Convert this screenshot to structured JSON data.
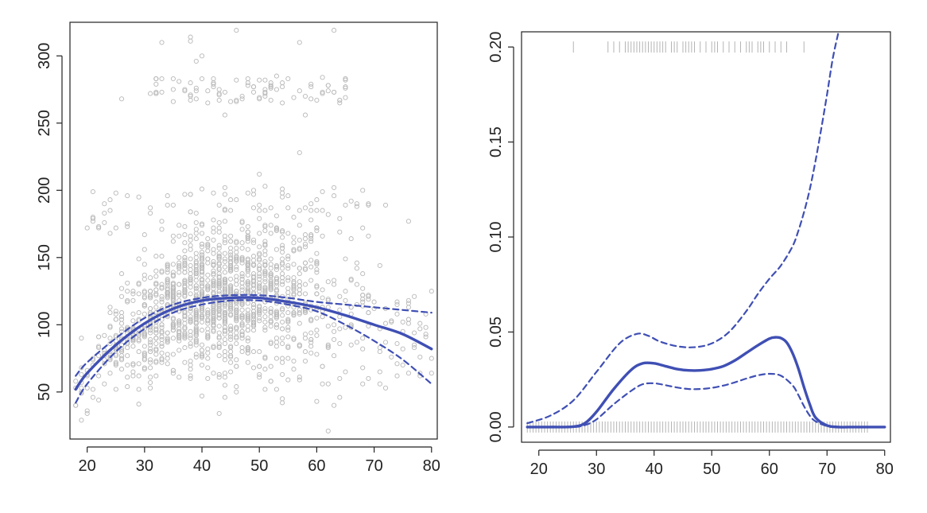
{
  "colors": {
    "fit_line": "#3f4fb4",
    "points": "#b8b8b8",
    "rug": "#b4b4b4",
    "axis": "#222222",
    "background": "#ffffff"
  },
  "chart_data": [
    {
      "type": "scatter",
      "title": "",
      "xlabel": "",
      "ylabel": "",
      "xlim": [
        17,
        81
      ],
      "ylim": [
        15,
        325
      ],
      "x_ticks": [
        20,
        30,
        40,
        50,
        60,
        70,
        80
      ],
      "x_tick_labels": [
        "20",
        "30",
        "40",
        "50",
        "60",
        "70",
        "80"
      ],
      "y_ticks": [
        50,
        100,
        150,
        200,
        250,
        300
      ],
      "y_tick_labels": [
        "50",
        "100",
        "150",
        "200",
        "250",
        "300"
      ],
      "grid": false,
      "legend": "none",
      "point_summary": {
        "x_range": [
          18,
          80
        ],
        "main_cloud_y_range": [
          20,
          212
        ],
        "upper_band_x_range": [
          31,
          66
        ],
        "upper_band_y_range": [
          255,
          285
        ]
      },
      "outlier_points": [
        {
          "x": 33,
          "y": 310
        },
        {
          "x": 38,
          "y": 314
        },
        {
          "x": 38,
          "y": 311
        },
        {
          "x": 40,
          "y": 300
        },
        {
          "x": 39,
          "y": 296
        },
        {
          "x": 46,
          "y": 319
        },
        {
          "x": 57,
          "y": 310
        },
        {
          "x": 63,
          "y": 319
        },
        {
          "x": 26,
          "y": 268
        },
        {
          "x": 44,
          "y": 256
        },
        {
          "x": 58,
          "y": 256
        },
        {
          "x": 57,
          "y": 228
        },
        {
          "x": 50,
          "y": 212
        },
        {
          "x": 72,
          "y": 189
        },
        {
          "x": 76,
          "y": 177
        }
      ],
      "series": [
        {
          "role": "fit",
          "style": "solid",
          "x": [
            18,
            20,
            25,
            30,
            35,
            40,
            45,
            50,
            55,
            60,
            65,
            70,
            75,
            80
          ],
          "y": [
            52,
            64,
            85,
            101,
            112,
            118,
            120,
            120,
            117,
            113,
            107,
            100,
            93,
            82
          ]
        },
        {
          "role": "upper-band",
          "style": "dashed",
          "x": [
            18,
            20,
            25,
            30,
            35,
            40,
            45,
            50,
            55,
            60,
            65,
            70,
            75,
            80
          ],
          "y": [
            62,
            72,
            90,
            105,
            115,
            120,
            122,
            122,
            120,
            117,
            115,
            113,
            111,
            109
          ]
        },
        {
          "role": "lower-band",
          "style": "dashed",
          "x": [
            18,
            20,
            25,
            30,
            35,
            40,
            45,
            50,
            55,
            60,
            65,
            70,
            75,
            80
          ],
          "y": [
            42,
            56,
            80,
            97,
            109,
            115,
            118,
            118,
            115,
            110,
            100,
            88,
            74,
            56
          ]
        }
      ]
    },
    {
      "type": "line",
      "title": "",
      "xlabel": "",
      "ylabel": "",
      "xlim": [
        17,
        81
      ],
      "ylim": [
        -0.008,
        0.208
      ],
      "x_ticks": [
        20,
        30,
        40,
        50,
        60,
        70,
        80
      ],
      "x_tick_labels": [
        "20",
        "30",
        "40",
        "50",
        "60",
        "70",
        "80"
      ],
      "y_ticks": [
        0,
        0.05,
        0.1,
        0.15,
        0.2
      ],
      "y_tick_labels": [
        "0.00",
        "0.05",
        "0.10",
        "0.15",
        "0.20"
      ],
      "grid": false,
      "legend": "none",
      "series": [
        {
          "role": "fit",
          "style": "solid",
          "x": [
            18,
            22,
            26,
            28,
            30,
            33,
            36,
            38,
            40,
            42,
            44,
            46,
            48,
            50,
            52,
            54,
            56,
            58,
            60,
            61,
            62,
            63,
            64,
            65,
            66,
            67,
            68,
            70,
            72,
            75,
            80
          ],
          "y": [
            0,
            0,
            0.0002,
            0.002,
            0.008,
            0.02,
            0.03,
            0.0335,
            0.0335,
            0.032,
            0.0305,
            0.0298,
            0.0298,
            0.0305,
            0.032,
            0.035,
            0.039,
            0.043,
            0.0465,
            0.0472,
            0.0468,
            0.0445,
            0.039,
            0.031,
            0.021,
            0.012,
            0.005,
            0.0008,
            0,
            0,
            0
          ]
        },
        {
          "role": "upper-band",
          "style": "dashed",
          "x": [
            18,
            22,
            26,
            30,
            34,
            37,
            39,
            41,
            44,
            47,
            50,
            53,
            56,
            58,
            60,
            62,
            64,
            65,
            66,
            67,
            68,
            69,
            70,
            71,
            72
          ],
          "y": [
            0.002,
            0.006,
            0.014,
            0.029,
            0.044,
            0.049,
            0.048,
            0.045,
            0.0425,
            0.042,
            0.044,
            0.05,
            0.061,
            0.07,
            0.078,
            0.085,
            0.095,
            0.103,
            0.113,
            0.125,
            0.14,
            0.157,
            0.175,
            0.194,
            0.208
          ]
        },
        {
          "role": "lower-band",
          "style": "dashed",
          "x": [
            18,
            22,
            26,
            28,
            30,
            33,
            36,
            38,
            40,
            42,
            44,
            46,
            48,
            50,
            52,
            54,
            56,
            58,
            60,
            62,
            64,
            65,
            66,
            67,
            68,
            70,
            72,
            80
          ],
          "y": [
            0,
            0,
            0,
            0.001,
            0.004,
            0.012,
            0.019,
            0.0225,
            0.023,
            0.022,
            0.0208,
            0.02,
            0.02,
            0.0206,
            0.0218,
            0.0235,
            0.0255,
            0.0272,
            0.028,
            0.027,
            0.022,
            0.017,
            0.011,
            0.006,
            0.003,
            0.0005,
            0,
            0
          ]
        }
      ],
      "rug_top": [
        26,
        32,
        33,
        34,
        35,
        35.5,
        36,
        36.5,
        37,
        37.5,
        38,
        38.5,
        39,
        39.5,
        40,
        40.5,
        41,
        41.5,
        42,
        43,
        43.5,
        44,
        45,
        45.5,
        46,
        46.5,
        47,
        48,
        49,
        50,
        50.5,
        51,
        52,
        53,
        54,
        55,
        56,
        56.5,
        57,
        58,
        58.5,
        59,
        60,
        61,
        62,
        63,
        66
      ],
      "rug_bottom_range": [
        18,
        77
      ]
    }
  ]
}
